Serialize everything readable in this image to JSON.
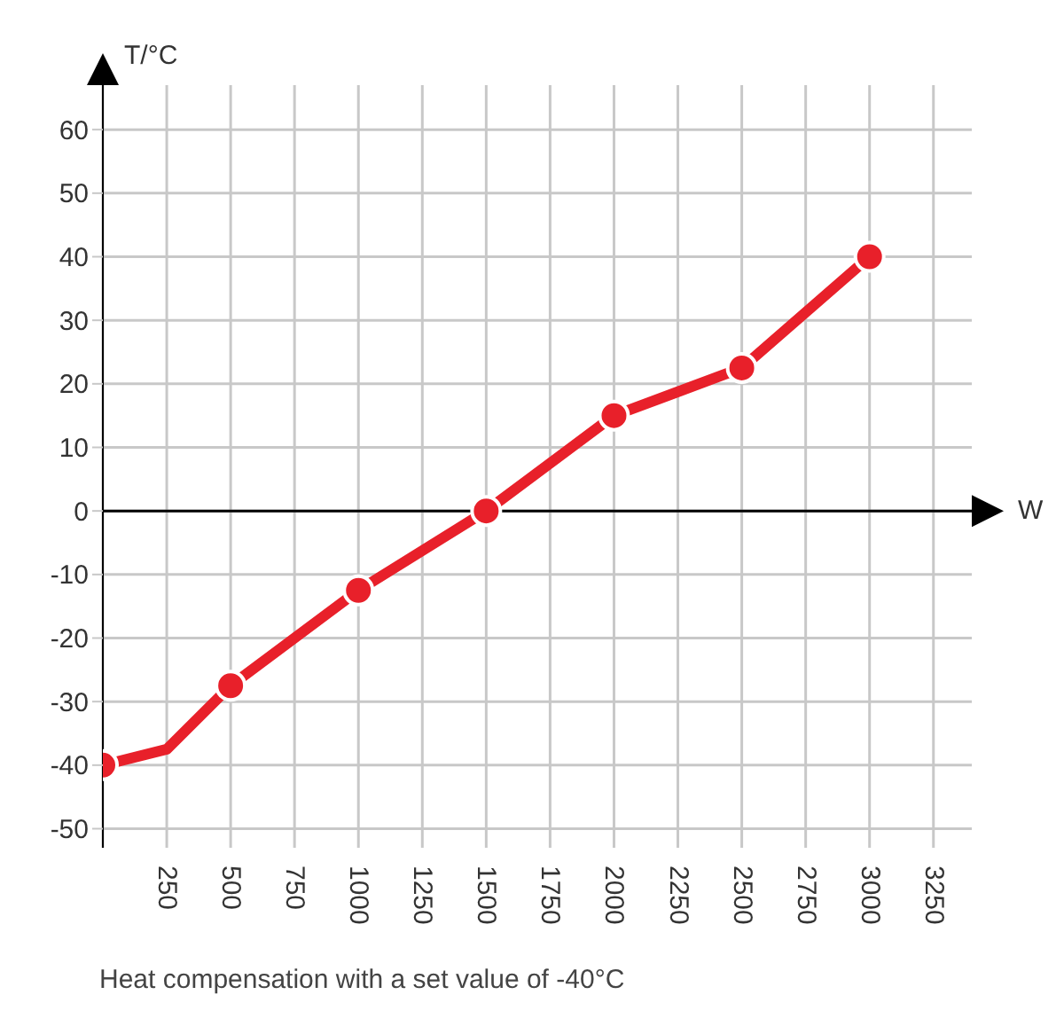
{
  "chart_data": {
    "type": "line",
    "xlabel": "W",
    "ylabel": "T/°C",
    "annotations": [
      "Heat compensation with a set value of -40°C"
    ],
    "series": [
      {
        "color": "#e8202a",
        "marker": "none",
        "x": [
          0,
          250,
          500,
          1000,
          1500,
          2000,
          2500,
          3000
        ],
        "values": [
          -40,
          -37.5,
          -27.5,
          -12.5,
          0,
          15,
          22.5,
          40
        ]
      },
      {
        "type": "scatter",
        "color": "#e8202a",
        "marker": "circle",
        "x": [
          0,
          500,
          1000,
          1500,
          2000,
          2500,
          3000
        ],
        "values": [
          -40,
          -27.5,
          -12.5,
          0,
          15,
          22.5,
          40
        ]
      }
    ],
    "xlim": [
      0,
      3400
    ],
    "xticks": [
      {
        "value": 0,
        "label": null
      },
      250,
      500,
      750,
      1000,
      1250,
      1500,
      1750,
      2000,
      2250,
      2500,
      2750,
      3000,
      3250
    ],
    "ylim": [
      -53,
      67
    ],
    "yticks": [
      -50,
      -40,
      -30,
      -20,
      -10,
      0,
      10,
      20,
      30,
      40,
      50,
      60
    ],
    "grid": true,
    "line_style": "solid"
  }
}
